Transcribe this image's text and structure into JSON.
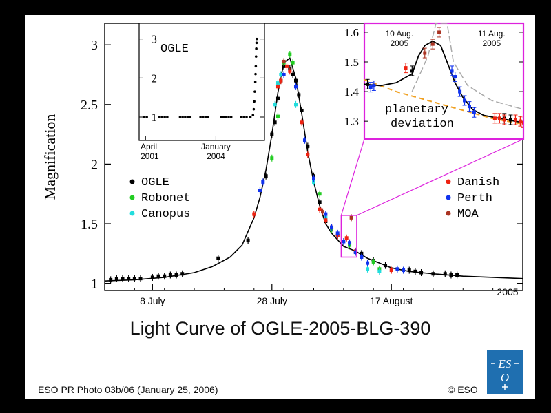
{
  "title": "Light Curve of OGLE-2005-BLG-390",
  "credit": "ESO PR Photo 03b/06 (January 25, 2006)",
  "copyright": "© ESO",
  "logo": {
    "text_top": "ES",
    "text_bottom": "O"
  },
  "chart_data": [
    {
      "type": "scatter",
      "title": "",
      "ylabel": "Magnification",
      "xlabel": "",
      "year_label": "2005",
      "x_ticks": [
        {
          "day": 8,
          "label": "8 July"
        },
        {
          "day": 28,
          "label": "28 July"
        },
        {
          "day": 48,
          "label": "17 August"
        }
      ],
      "xlim": [
        0,
        70
      ],
      "y_ticks": [
        "1",
        "1.5",
        "2",
        "2.5",
        "3"
      ],
      "ylim": [
        0.94,
        3.18
      ],
      "legend_left": [
        {
          "name": "OGLE",
          "color": "#000000"
        },
        {
          "name": "Robonet",
          "color": "#22cc22"
        },
        {
          "name": "Canopus",
          "color": "#22dddd"
        }
      ],
      "legend_right": [
        {
          "name": "Danish",
          "color": "#ee2211"
        },
        {
          "name": "Perth",
          "color": "#1133ee"
        },
        {
          "name": "MOA",
          "color": "#aa3322"
        }
      ],
      "model_curve": [
        [
          0,
          1.02
        ],
        [
          5,
          1.03
        ],
        [
          10,
          1.05
        ],
        [
          15,
          1.09
        ],
        [
          18,
          1.14
        ],
        [
          21,
          1.22
        ],
        [
          23,
          1.32
        ],
        [
          25,
          1.55
        ],
        [
          26,
          1.72
        ],
        [
          27,
          1.95
        ],
        [
          28,
          2.25
        ],
        [
          29,
          2.6
        ],
        [
          30,
          2.85
        ],
        [
          31,
          2.89
        ],
        [
          32,
          2.72
        ],
        [
          33,
          2.42
        ],
        [
          34,
          2.1
        ],
        [
          35,
          1.85
        ],
        [
          36,
          1.65
        ],
        [
          37,
          1.5
        ],
        [
          38,
          1.42
        ],
        [
          40,
          1.31
        ],
        [
          42,
          1.27
        ],
        [
          44,
          1.21
        ],
        [
          46,
          1.17
        ],
        [
          48,
          1.13
        ],
        [
          51,
          1.1
        ],
        [
          55,
          1.08
        ],
        [
          60,
          1.06
        ],
        [
          65,
          1.05
        ],
        [
          70,
          1.04
        ]
      ],
      "series": [
        {
          "name": "OGLE",
          "color": "#000000",
          "points": [
            [
              1,
              1.03
            ],
            [
              2,
              1.04
            ],
            [
              3,
              1.04
            ],
            [
              4,
              1.04
            ],
            [
              5,
              1.04
            ],
            [
              6,
              1.04
            ],
            [
              8,
              1.05
            ],
            [
              9,
              1.06
            ],
            [
              10,
              1.06
            ],
            [
              11,
              1.07
            ],
            [
              12,
              1.07
            ],
            [
              13,
              1.08
            ],
            [
              19,
              1.21
            ],
            [
              24,
              1.36
            ],
            [
              27,
              1.9
            ],
            [
              28,
              2.25
            ],
            [
              28.5,
              2.35
            ],
            [
              29,
              2.55
            ],
            [
              29.5,
              2.7
            ],
            [
              30,
              2.82
            ],
            [
              31,
              2.8
            ],
            [
              31.5,
              2.75
            ],
            [
              32,
              2.7
            ],
            [
              32.5,
              2.58
            ],
            [
              33,
              2.45
            ],
            [
              34,
              2.15
            ],
            [
              35,
              1.9
            ],
            [
              36,
              1.68
            ],
            [
              37,
              1.52
            ],
            [
              38,
              1.45
            ],
            [
              39,
              1.4
            ],
            [
              43,
              1.25
            ],
            [
              45,
              1.19
            ],
            [
              47,
              1.15
            ],
            [
              51,
              1.11
            ],
            [
              52,
              1.1
            ],
            [
              53,
              1.09
            ],
            [
              55,
              1.08
            ],
            [
              57,
              1.08
            ],
            [
              58,
              1.07
            ],
            [
              59,
              1.07
            ]
          ]
        },
        {
          "name": "Robonet",
          "color": "#22cc22",
          "points": [
            [
              28,
              2.05
            ],
            [
              29,
              2.4
            ],
            [
              30,
              2.85
            ],
            [
              31,
              2.92
            ],
            [
              31.5,
              2.85
            ],
            [
              36,
              1.75
            ],
            [
              38,
              1.45
            ],
            [
              41,
              1.32
            ],
            [
              45,
              1.18
            ],
            [
              46,
              1.12
            ]
          ]
        },
        {
          "name": "Canopus",
          "color": "#22dddd",
          "points": [
            [
              28.5,
              2.5
            ],
            [
              29,
              2.68
            ],
            [
              29.5,
              2.75
            ],
            [
              32,
              2.5
            ],
            [
              35,
              1.85
            ],
            [
              37,
              1.55
            ],
            [
              44,
              1.12
            ],
            [
              46,
              1.1
            ]
          ]
        },
        {
          "name": "Danish",
          "color": "#ee2211",
          "points": [
            [
              25,
              1.58
            ],
            [
              29,
              2.65
            ],
            [
              29.5,
              2.7
            ],
            [
              30.5,
              2.82
            ],
            [
              31,
              2.78
            ],
            [
              33,
              2.35
            ],
            [
              34,
              2.08
            ],
            [
              36,
              1.62
            ],
            [
              37,
              1.53
            ],
            [
              38,
              1.47
            ],
            [
              39,
              1.4
            ],
            [
              40.5,
              1.38
            ],
            [
              42,
              1.27
            ],
            [
              48,
              1.11
            ]
          ]
        },
        {
          "name": "Perth",
          "color": "#1133ee",
          "points": [
            [
              26,
              1.78
            ],
            [
              26.5,
              1.85
            ],
            [
              30,
              2.75
            ],
            [
              32,
              2.65
            ],
            [
              33.5,
              2.2
            ],
            [
              35,
              1.88
            ],
            [
              37,
              1.58
            ],
            [
              38,
              1.47
            ],
            [
              39,
              1.42
            ],
            [
              40,
              1.35
            ],
            [
              41,
              1.34
            ],
            [
              42,
              1.26
            ],
            [
              43,
              1.22
            ],
            [
              44,
              1.17
            ],
            [
              49,
              1.12
            ],
            [
              50,
              1.11
            ]
          ]
        },
        {
          "name": "MOA",
          "color": "#aa3322",
          "points": [
            [
              30,
              2.86
            ],
            [
              36.5,
              1.6
            ],
            [
              41.3,
              1.55
            ]
          ]
        }
      ],
      "zoom_box": {
        "x": [
          39.6,
          42.2
        ],
        "y": [
          1.22,
          1.57
        ]
      }
    },
    {
      "type": "scatter",
      "title": "OGLE",
      "x_ticks": [
        {
          "year": 2001.25,
          "label": "April",
          "label2": "2001"
        },
        {
          "year": 2004.0,
          "label": "January",
          "label2": "2004"
        }
      ],
      "xlim": [
        2001.0,
        2005.9
      ],
      "y_ticks": [
        "1",
        "2",
        "3"
      ],
      "ylim": [
        0.4,
        3.4
      ],
      "series": [
        {
          "name": "OGLE",
          "color": "#000000",
          "points": [
            [
              2001.2,
              1.0
            ],
            [
              2001.3,
              1.0
            ],
            [
              2001.8,
              1.0
            ],
            [
              2001.9,
              1.0
            ],
            [
              2002.0,
              1.0
            ],
            [
              2002.1,
              1.0
            ],
            [
              2002.6,
              1.0
            ],
            [
              2002.7,
              1.0
            ],
            [
              2002.8,
              1.0
            ],
            [
              2002.9,
              1.0
            ],
            [
              2003.0,
              1.0
            ],
            [
              2003.4,
              1.0
            ],
            [
              2003.5,
              1.0
            ],
            [
              2003.6,
              1.0
            ],
            [
              2003.7,
              1.0
            ],
            [
              2004.2,
              1.0
            ],
            [
              2004.3,
              1.0
            ],
            [
              2004.4,
              1.0
            ],
            [
              2004.5,
              1.0
            ],
            [
              2004.6,
              1.0
            ],
            [
              2005.0,
              1.0
            ],
            [
              2005.1,
              1.0
            ],
            [
              2005.2,
              1.0
            ],
            [
              2005.35,
              1.0
            ],
            [
              2005.45,
              1.05
            ],
            [
              2005.48,
              1.2
            ],
            [
              2005.5,
              1.4
            ],
            [
              2005.52,
              1.65
            ],
            [
              2005.54,
              1.9
            ],
            [
              2005.55,
              2.1
            ],
            [
              2005.56,
              2.3
            ],
            [
              2005.57,
              2.55
            ],
            [
              2005.58,
              2.75
            ],
            [
              2005.59,
              2.9
            ],
            [
              2005.6,
              3.0
            ]
          ]
        }
      ]
    },
    {
      "type": "scatter",
      "title": "",
      "x_labels": [
        {
          "t": 0.22,
          "label": "10 Aug.",
          "label2": "2005"
        },
        {
          "t": 0.8,
          "label": "11 Aug.",
          "label2": "2005"
        }
      ],
      "xlim": [
        0,
        1
      ],
      "y_ticks": [
        "1.3",
        "1.4",
        "1.5",
        "1.6"
      ],
      "ylim": [
        1.24,
        1.63
      ],
      "annotation": "planetary deviation",
      "planet_curve": [
        [
          0.0,
          1.425
        ],
        [
          0.1,
          1.42
        ],
        [
          0.2,
          1.43
        ],
        [
          0.3,
          1.46
        ],
        [
          0.34,
          1.52
        ],
        [
          0.38,
          1.555
        ],
        [
          0.43,
          1.57
        ],
        [
          0.48,
          1.555
        ],
        [
          0.52,
          1.5
        ],
        [
          0.57,
          1.43
        ],
        [
          0.62,
          1.38
        ],
        [
          0.68,
          1.34
        ],
        [
          0.75,
          1.32
        ],
        [
          0.85,
          1.31
        ],
        [
          1.0,
          1.295
        ]
      ],
      "single_lens_curve": [
        [
          0.0,
          1.44
        ],
        [
          0.2,
          1.4
        ],
        [
          0.4,
          1.37
        ],
        [
          0.6,
          1.34
        ],
        [
          0.8,
          1.31
        ],
        [
          1.0,
          1.29
        ]
      ],
      "gray_curve": [
        [
          0.3,
          1.4
        ],
        [
          0.4,
          1.52
        ],
        [
          0.45,
          1.63
        ],
        [
          0.52,
          1.63
        ],
        [
          0.56,
          1.5
        ],
        [
          0.65,
          1.42
        ],
        [
          0.8,
          1.37
        ],
        [
          1.0,
          1.34
        ]
      ],
      "series": [
        {
          "name": "Perth",
          "color": "#1133ee",
          "points": [
            [
              0.04,
              1.415
            ],
            [
              0.06,
              1.42
            ],
            [
              0.55,
              1.47
            ],
            [
              0.57,
              1.45
            ],
            [
              0.6,
              1.4
            ],
            [
              0.63,
              1.37
            ],
            [
              0.66,
              1.35
            ],
            [
              0.69,
              1.33
            ]
          ]
        },
        {
          "name": "OGLE",
          "color": "#000000",
          "points": [
            [
              0.02,
              1.425
            ],
            [
              0.3,
              1.47
            ],
            [
              0.88,
              1.31
            ],
            [
              0.92,
              1.305
            ]
          ]
        },
        {
          "name": "Danish",
          "color": "#ee2211",
          "points": [
            [
              0.26,
              1.48
            ],
            [
              0.82,
              1.31
            ],
            [
              0.85,
              1.31
            ],
            [
              0.88,
              1.305
            ],
            [
              0.95,
              1.305
            ],
            [
              0.98,
              1.3
            ],
            [
              1.0,
              1.295
            ]
          ]
        },
        {
          "name": "MOA",
          "color": "#aa3322",
          "points": [
            [
              0.38,
              1.53
            ],
            [
              0.43,
              1.56
            ],
            [
              0.47,
              1.6
            ]
          ]
        }
      ]
    }
  ]
}
